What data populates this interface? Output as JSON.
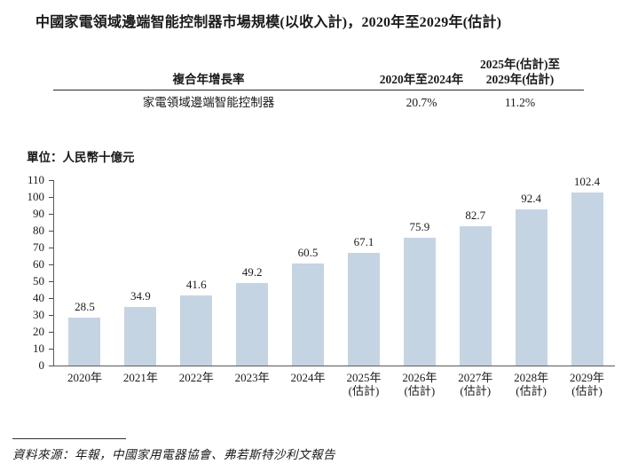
{
  "page": {
    "title": "中國家電領域邊端智能控制器市場規模(以收入計)，2020年至2029年(估計)",
    "source_note": "資料來源：年報，中國家用電器協會、弗若斯特沙利文報告"
  },
  "cagr_table": {
    "header_col1": "複合年增長率",
    "header_col2": "2020年至2024年",
    "header_col3_line1": "2025年(估計)至",
    "header_col3_line2": "2029年(估計)",
    "row": {
      "label": "家電領域邊端智能控制器",
      "cagr_2020_2024": "20.7%",
      "cagr_2025_2029": "11.2%"
    }
  },
  "chart_data": {
    "type": "bar",
    "title": "中國家電領域邊端智能控制器市場規模(以收入計)，2020年至2029年(估計)",
    "unit_label": "單位：人民幣十億元",
    "categories": [
      "2020年",
      "2021年",
      "2022年",
      "2023年",
      "2024年",
      "2025年\n(估計)",
      "2026年\n(估計)",
      "2027年\n(估計)",
      "2028年\n(估計)",
      "2029年\n(估計)"
    ],
    "values": [
      28.5,
      34.9,
      41.6,
      49.2,
      60.5,
      67.1,
      75.9,
      82.7,
      92.4,
      102.4
    ],
    "value_labels": [
      "28.5",
      "34.9",
      "41.6",
      "49.2",
      "60.5",
      "67.1",
      "75.9",
      "82.7",
      "92.4",
      "102.4"
    ],
    "ylabel": "",
    "xlabel": "",
    "ylim": [
      0,
      110
    ],
    "ytick_step": 10,
    "grid": false,
    "legend": false,
    "bar_color": "#c5d4e3",
    "axis_color": "#5a5a5a",
    "text_color": "#1a1a1a"
  }
}
